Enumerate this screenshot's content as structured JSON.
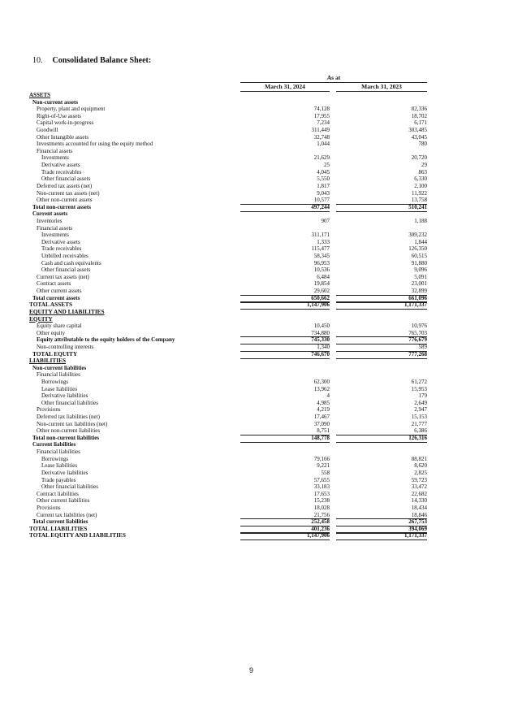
{
  "heading": {
    "number": "10.",
    "title": "Consolidated Balance Sheet:"
  },
  "columns": {
    "group": "As at",
    "col1": "March 31, 2024",
    "col2": "March 31, 2023"
  },
  "rows": [
    {
      "label": "ASSETS",
      "level": 0,
      "style": "bold ul",
      "v1": "",
      "v2": ""
    },
    {
      "label": "Non-current assets",
      "level": 1,
      "style": "bold",
      "v1": "",
      "v2": ""
    },
    {
      "label": "Property, plant and equipment",
      "level": 2,
      "style": "",
      "v1": "74,128",
      "v2": "82,336"
    },
    {
      "label": "Right-of-Use assets",
      "level": 2,
      "style": "",
      "v1": "17,955",
      "v2": "18,702"
    },
    {
      "label": "Capital work-in-progress",
      "level": 2,
      "style": "",
      "v1": "7,234",
      "v2": "6,171"
    },
    {
      "label": "Goodwill",
      "level": 2,
      "style": "",
      "v1": "311,449",
      "v2": "303,485"
    },
    {
      "label": "Other Intangible assets",
      "level": 2,
      "style": "",
      "v1": "32,748",
      "v2": "43,045"
    },
    {
      "label": "Investments accounted for using the equity method",
      "level": 2,
      "style": "",
      "v1": "1,044",
      "v2": "780"
    },
    {
      "label": "Financial assets",
      "level": 2,
      "style": "",
      "v1": "",
      "v2": ""
    },
    {
      "label": "Investments",
      "level": 3,
      "style": "",
      "v1": "21,629",
      "v2": "20,720"
    },
    {
      "label": "Derivative assets",
      "level": 3,
      "style": "",
      "v1": "25",
      "v2": "29"
    },
    {
      "label": "Trade receivables",
      "level": 3,
      "style": "",
      "v1": "4,045",
      "v2": "863"
    },
    {
      "label": "Other financial assets",
      "level": 3,
      "style": "",
      "v1": "5,550",
      "v2": "6,330"
    },
    {
      "label": "Deferred tax assets (net)",
      "level": 2,
      "style": "",
      "v1": "1,817",
      "v2": "2,100"
    },
    {
      "label": "Non-current tax assets (net)",
      "level": 2,
      "style": "",
      "v1": "9,043",
      "v2": "11,922"
    },
    {
      "label": "Other non-current assets",
      "level": 2,
      "style": "",
      "v1": "10,577",
      "v2": "13,758"
    },
    {
      "label": "Total non-current assets",
      "level": 1,
      "style": "bold total",
      "v1": "497,244",
      "v2": "510,241"
    },
    {
      "label": "Current assets",
      "level": 1,
      "style": "bold",
      "v1": "",
      "v2": ""
    },
    {
      "label": "Inventories",
      "level": 2,
      "style": "",
      "v1": "907",
      "v2": "1,188"
    },
    {
      "label": "Financial assets",
      "level": 2,
      "style": "",
      "v1": "",
      "v2": ""
    },
    {
      "label": "Investments",
      "level": 3,
      "style": "",
      "v1": "311,171",
      "v2": "309,232"
    },
    {
      "label": "Derivative assets",
      "level": 3,
      "style": "",
      "v1": "1,333",
      "v2": "1,844"
    },
    {
      "label": "Trade receivables",
      "level": 3,
      "style": "",
      "v1": "115,477",
      "v2": "126,350"
    },
    {
      "label": "Unbilled receivables",
      "level": 3,
      "style": "",
      "v1": "58,345",
      "v2": "60,515"
    },
    {
      "label": "Cash and cash equivalents",
      "level": 3,
      "style": "",
      "v1": "96,953",
      "v2": "91,880"
    },
    {
      "label": "Other financial assets",
      "level": 3,
      "style": "",
      "v1": "10,536",
      "v2": "9,096"
    },
    {
      "label": "Current tax assets (net)",
      "level": 2,
      "style": "",
      "v1": "6,484",
      "v2": "5,091"
    },
    {
      "label": "Contract assets",
      "level": 2,
      "style": "",
      "v1": "19,854",
      "v2": "23,001"
    },
    {
      "label": "Other current assets",
      "level": 2,
      "style": "",
      "v1": "29,602",
      "v2": "32,899"
    },
    {
      "label": "Total current assets",
      "level": 1,
      "style": "bold total",
      "v1": "650,662",
      "v2": "661,096"
    },
    {
      "label": "TOTAL ASSETS",
      "level": 0,
      "style": "bold caps total",
      "v1": "1,147,906",
      "v2": "1,171,337"
    },
    {
      "label": "EQUITY AND LIABILITIES",
      "level": 0,
      "style": "bold ul caps",
      "v1": "",
      "v2": ""
    },
    {
      "label": "EQUITY",
      "level": 0,
      "style": "bold ul caps",
      "v1": "",
      "v2": ""
    },
    {
      "label": "Equity share capital",
      "level": 2,
      "style": "",
      "v1": "10,450",
      "v2": "10,976"
    },
    {
      "label": "Other equity",
      "level": 2,
      "style": "",
      "v1": "734,880",
      "v2": "765,703"
    },
    {
      "label": "Equity attributable to the equity holders of the Company",
      "level": 2,
      "style": "bold total",
      "v1": "745,330",
      "v2": "776,679"
    },
    {
      "label": "Non-controlling interests",
      "level": 2,
      "style": "",
      "v1": "1,340",
      "v2": "589"
    },
    {
      "label": "TOTAL EQUITY",
      "level": 1,
      "style": "bold caps total",
      "v1": "746,670",
      "v2": "777,268"
    },
    {
      "label": "LIABILITIES",
      "level": 0,
      "style": "bold ul caps",
      "v1": "",
      "v2": ""
    },
    {
      "label": "Non-current liabilities",
      "level": 1,
      "style": "bold",
      "v1": "",
      "v2": ""
    },
    {
      "label": "Financial liabilities",
      "level": 2,
      "style": "",
      "v1": "",
      "v2": ""
    },
    {
      "label": "Borrowings",
      "level": 3,
      "style": "",
      "v1": "62,300",
      "v2": "61,272"
    },
    {
      "label": "Lease liabilities",
      "level": 3,
      "style": "",
      "v1": "13,962",
      "v2": "15,953"
    },
    {
      "label": "Derivative liabilities",
      "level": 3,
      "style": "",
      "v1": "4",
      "v2": "179"
    },
    {
      "label": "Other financial liabilities",
      "level": 3,
      "style": "",
      "v1": "4,985",
      "v2": "2,649"
    },
    {
      "label": "Provisions",
      "level": 2,
      "style": "",
      "v1": "4,219",
      "v2": "2,947"
    },
    {
      "label": "Deferred tax liabilities (net)",
      "level": 2,
      "style": "",
      "v1": "17,467",
      "v2": "15,153"
    },
    {
      "label": "Non-current tax liabilities (net)",
      "level": 2,
      "style": "",
      "v1": "37,090",
      "v2": "21,777"
    },
    {
      "label": "Other non-current liabilities",
      "level": 2,
      "style": "",
      "v1": "8,751",
      "v2": "6,386"
    },
    {
      "label": "Total non-current liabilities",
      "level": 1,
      "style": "bold total",
      "v1": "148,778",
      "v2": "126,316"
    },
    {
      "label": "Current liabilities",
      "level": 1,
      "style": "bold",
      "v1": "",
      "v2": ""
    },
    {
      "label": "Financial liabilities",
      "level": 2,
      "style": "",
      "v1": "",
      "v2": ""
    },
    {
      "label": "Borrowings",
      "level": 3,
      "style": "",
      "v1": "79,166",
      "v2": "88,821"
    },
    {
      "label": "Lease liabilities",
      "level": 3,
      "style": "",
      "v1": "9,221",
      "v2": "8,620"
    },
    {
      "label": "Derivative liabilities",
      "level": 3,
      "style": "",
      "v1": "558",
      "v2": "2,825"
    },
    {
      "label": "Trade payables",
      "level": 3,
      "style": "",
      "v1": "57,655",
      "v2": "59,723"
    },
    {
      "label": "Other financial liabilities",
      "level": 3,
      "style": "",
      "v1": "33,183",
      "v2": "33,472"
    },
    {
      "label": "Contract liabilities",
      "level": 2,
      "style": "",
      "v1": "17,653",
      "v2": "22,682"
    },
    {
      "label": "Other current liabilities",
      "level": 2,
      "style": "",
      "v1": "15,238",
      "v2": "14,330"
    },
    {
      "label": "Provisions",
      "level": 2,
      "style": "",
      "v1": "18,028",
      "v2": "18,434"
    },
    {
      "label": "Current tax liabilities (net)",
      "level": 2,
      "style": "",
      "v1": "21,756",
      "v2": "18,846"
    },
    {
      "label": "Total current liabilities",
      "level": 1,
      "style": "bold total",
      "v1": "252,458",
      "v2": "267,753"
    },
    {
      "label": "TOTAL LIABILITIES",
      "level": 0,
      "style": "bold caps total",
      "v1": "401,236",
      "v2": "394,069"
    },
    {
      "label": "TOTAL EQUITY AND LIABILITIES",
      "level": 0,
      "style": "bold caps total",
      "v1": "1,147,906",
      "v2": "1,171,337"
    }
  ],
  "page_number": "9"
}
